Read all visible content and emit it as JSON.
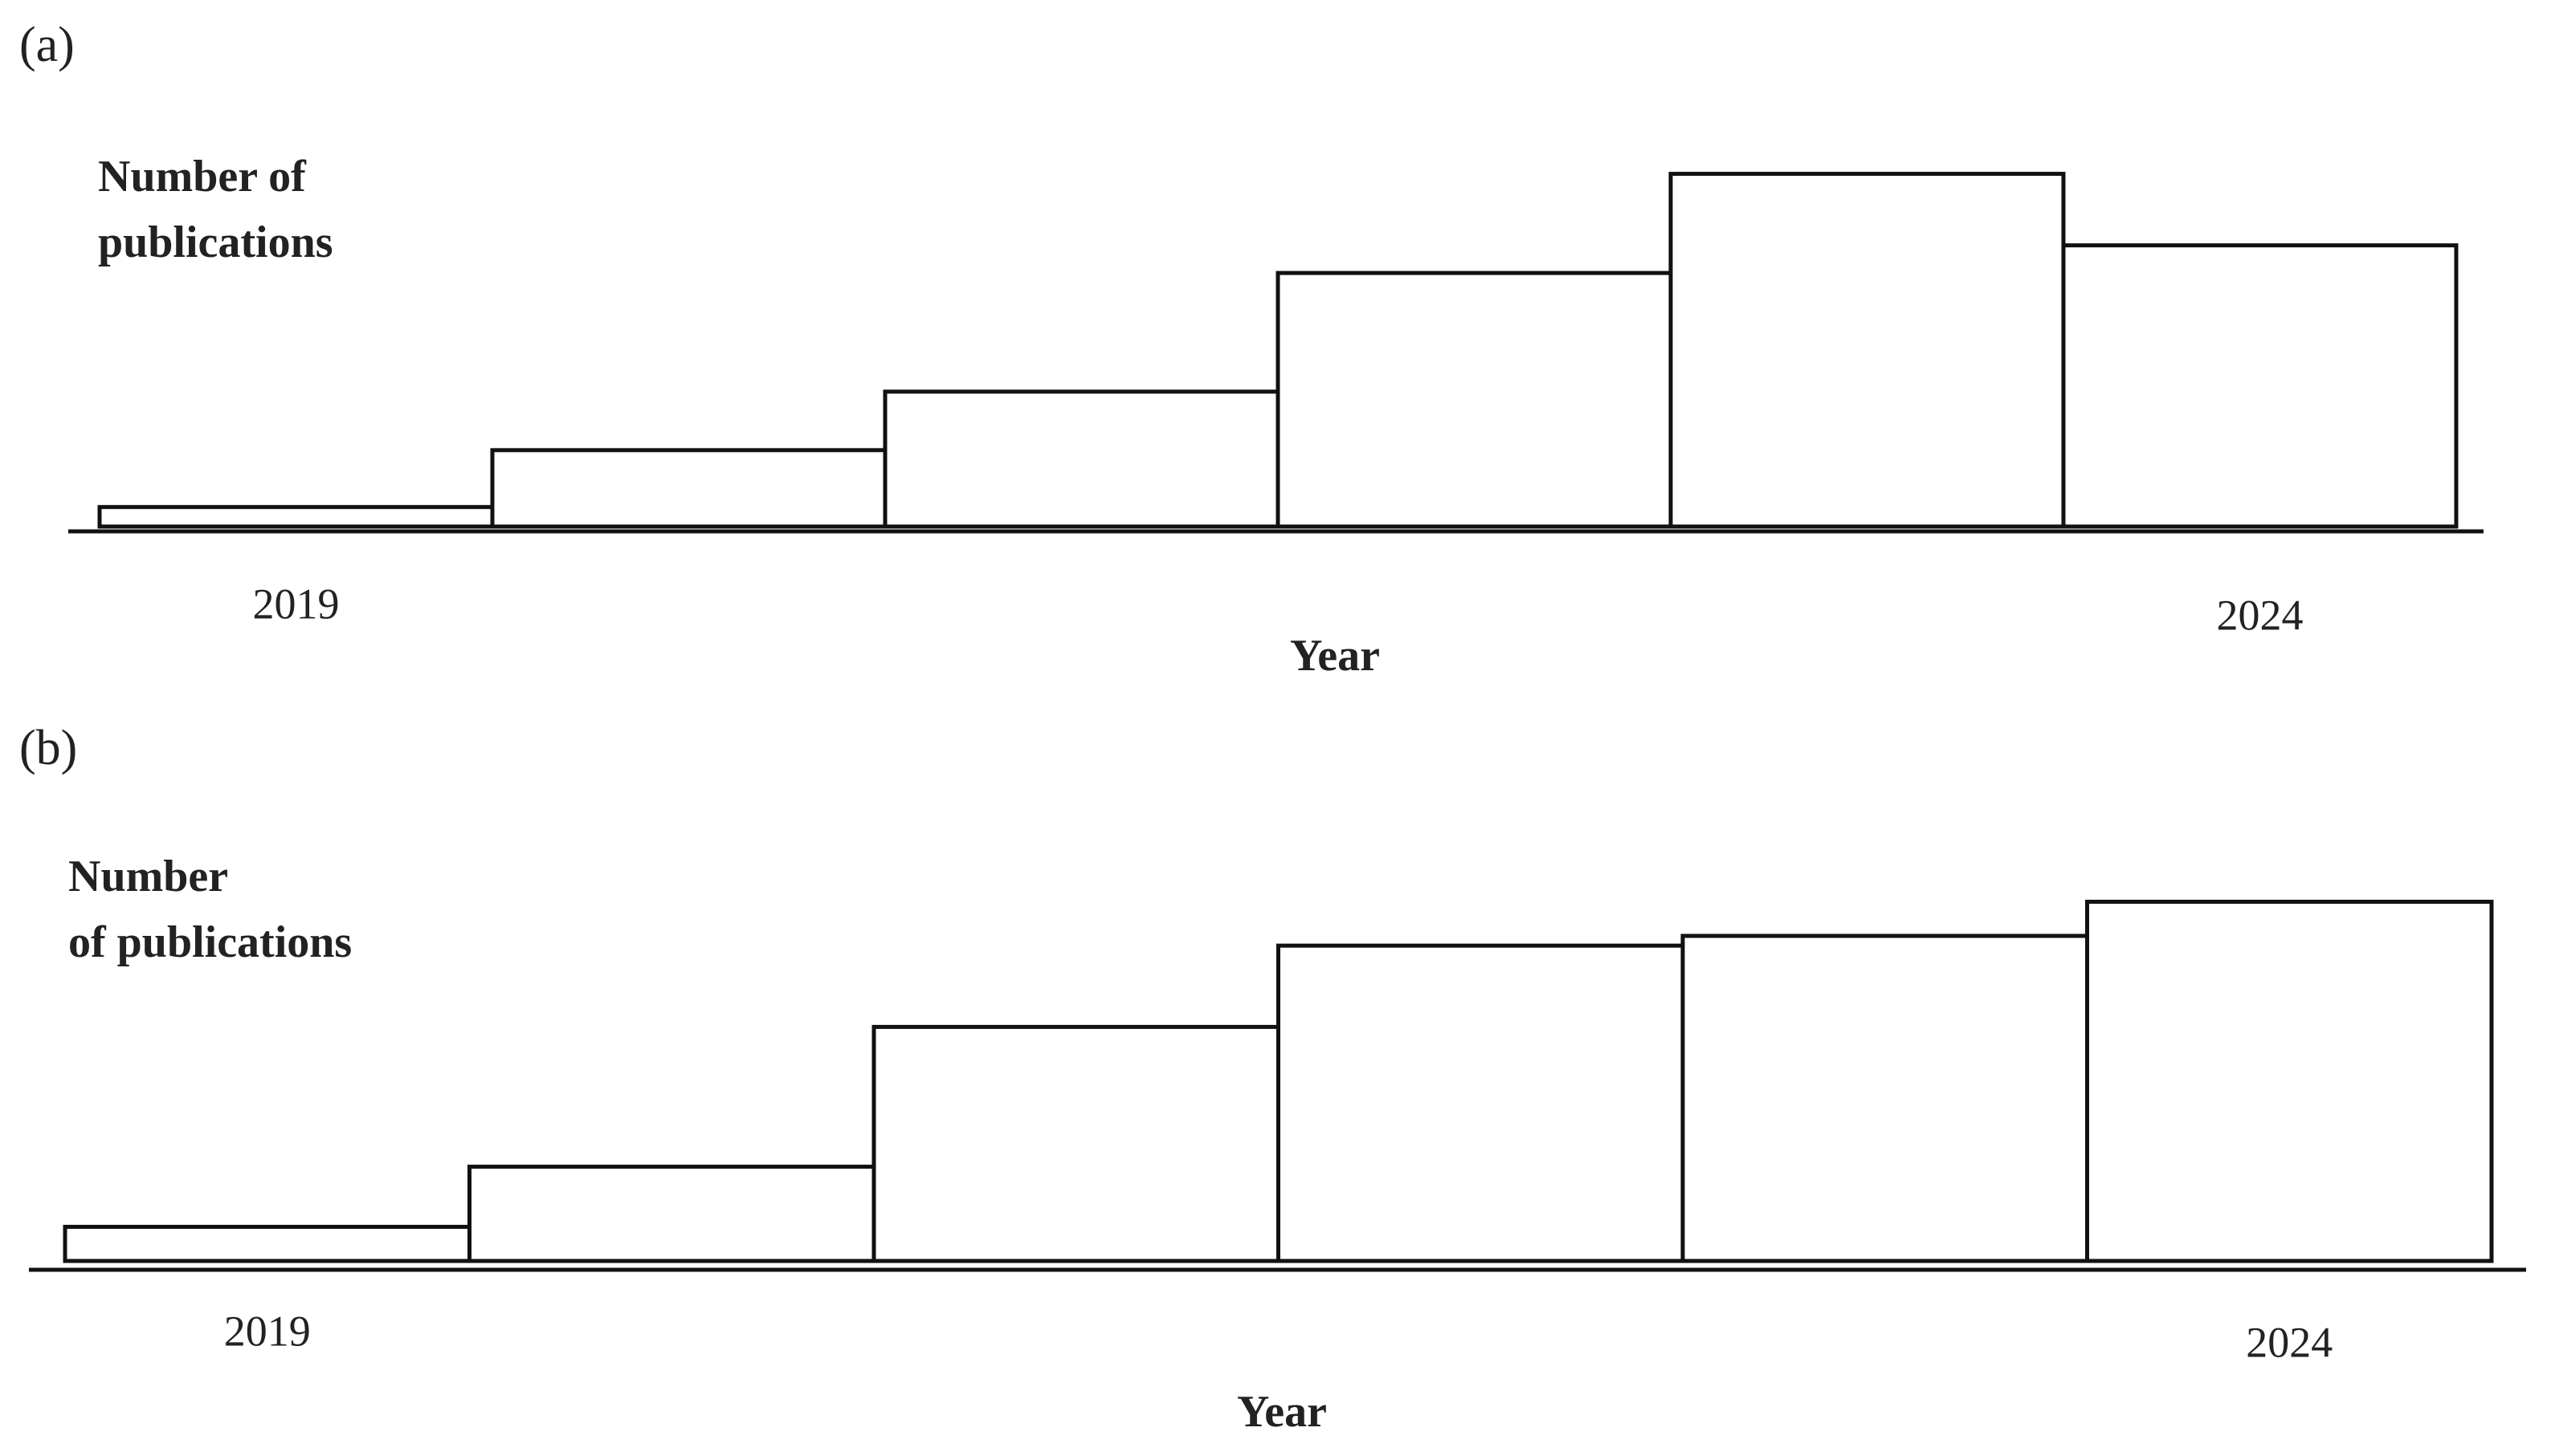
{
  "chart_data": [
    {
      "type": "bar",
      "panel": "(a)",
      "y_label": [
        "Number of",
        "publications"
      ],
      "x_label": "Year",
      "categories": [
        "2019",
        null,
        null,
        null,
        null,
        "2024"
      ],
      "values": [
        12,
        47,
        83,
        156,
        217,
        173
      ],
      "color": "#ffffff",
      "ylim": [
        0,
        240
      ],
      "grid": false
    },
    {
      "type": "bar",
      "panel": "(b)",
      "y_label": [
        "Number",
        "of publications"
      ],
      "x_label": "Year",
      "categories": [
        "2019",
        null,
        null,
        null,
        null,
        "2024"
      ],
      "values": [
        21,
        58,
        144,
        194,
        200,
        221
      ],
      "color": "#ffffff",
      "ylim": [
        0,
        240
      ],
      "grid": false
    }
  ]
}
